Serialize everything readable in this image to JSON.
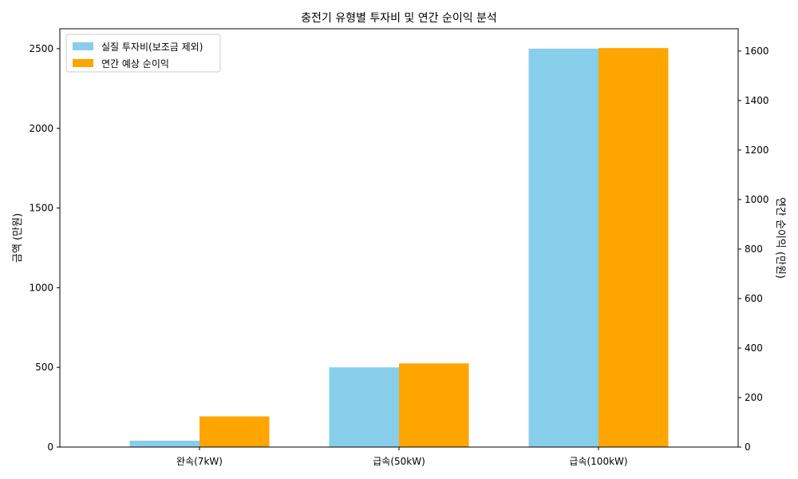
{
  "chart_data": {
    "type": "bar",
    "title": "충전기 유형별 투자비 및 연간 순이익 분석",
    "categories": [
      "완속(7kW)",
      "급속(50kW)",
      "급속(100kW)"
    ],
    "ylabel_left": "금액 (만원)",
    "ylabel_right": "연간 순이익 (만원)",
    "y_left": {
      "range": [
        0,
        2625
      ],
      "ticks": [
        0,
        500,
        1000,
        1500,
        2000,
        2500
      ]
    },
    "y_right": {
      "range": [
        0,
        1690
      ],
      "ticks": [
        0,
        200,
        400,
        600,
        800,
        1000,
        1200,
        1400,
        1600
      ]
    },
    "series": [
      {
        "name": "실질 투자비(보조금 제외)",
        "axis": "left",
        "color": "#87ceeb",
        "values": [
          40,
          500,
          2500
        ]
      },
      {
        "name": "연간 예상 순이익",
        "axis": "right",
        "color": "#ffa500",
        "values": [
          124,
          338,
          1612
        ]
      }
    ],
    "legend_position": "top-left",
    "grid": false
  }
}
